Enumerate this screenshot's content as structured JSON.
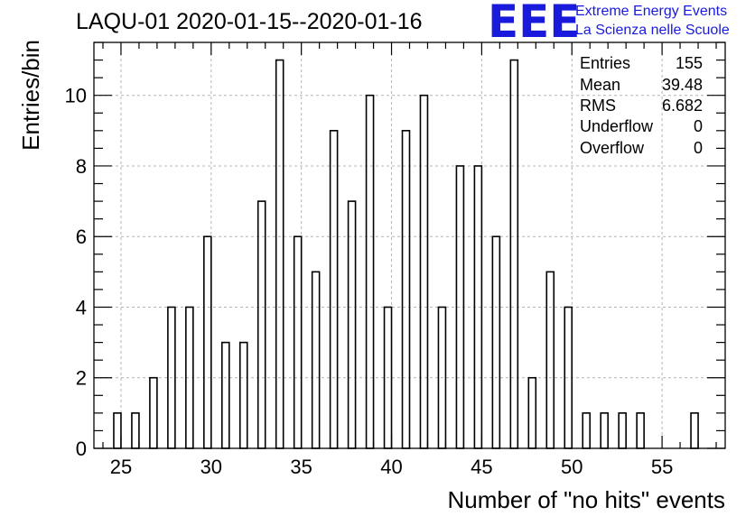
{
  "header": {
    "title": "LAQU-01 2020-01-15--2020-01-16",
    "logo_letters": "EEE",
    "logo_line1": "Extreme Energy Events",
    "logo_line2": "La Scienza nelle Scuole"
  },
  "stats_box": {
    "rows": [
      {
        "label": "Entries",
        "value": "155"
      },
      {
        "label": "Mean",
        "value": "39.48"
      },
      {
        "label": "RMS",
        "value": "6.682"
      },
      {
        "label": "Underflow",
        "value": "0"
      },
      {
        "label": "Overflow",
        "value": "0"
      }
    ]
  },
  "colors": {
    "bar_stroke": "#000000",
    "grid": "#b4b4b4",
    "logo": "#1a1adc"
  },
  "chart_data": {
    "type": "bar",
    "title": "LAQU-01 2020-01-15--2020-01-16",
    "xlabel": "Number of \"no hits\" events",
    "ylabel": "Entries/bin",
    "xlim": [
      23.5,
      58.5
    ],
    "ylim": [
      0,
      11.5
    ],
    "grid": true,
    "x_ticks": [
      25,
      30,
      35,
      40,
      45,
      50,
      55
    ],
    "y_ticks": [
      0,
      2,
      4,
      6,
      8,
      10
    ],
    "bin_width": 1,
    "categories": [
      25,
      26,
      27,
      28,
      29,
      30,
      31,
      32,
      33,
      34,
      35,
      36,
      37,
      38,
      39,
      40,
      41,
      42,
      43,
      44,
      45,
      46,
      47,
      48,
      49,
      50,
      51,
      52,
      53,
      54,
      55,
      56,
      57
    ],
    "values": [
      1,
      1,
      2,
      4,
      4,
      6,
      3,
      3,
      7,
      11,
      6,
      5,
      9,
      7,
      10,
      4,
      9,
      10,
      4,
      8,
      8,
      6,
      11,
      2,
      5,
      4,
      1,
      1,
      1,
      1,
      0,
      0,
      1
    ]
  }
}
